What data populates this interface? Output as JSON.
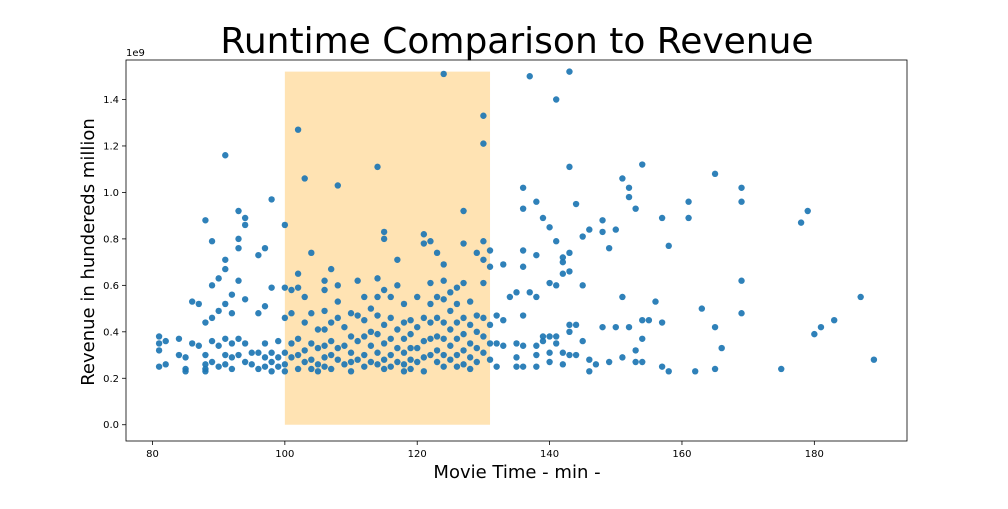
{
  "chart_data": {
    "type": "scatter",
    "title": "Runtime Comparison to Revenue",
    "xlabel": "Movie Time - min -",
    "ylabel": "Revenue in hundereds million",
    "y_offset_label": "1e9",
    "xlim": [
      76,
      194
    ],
    "ylim": [
      -0.07,
      1.57
    ],
    "x_ticks": [
      80,
      100,
      120,
      140,
      160,
      180
    ],
    "y_ticks": [
      0.0,
      0.2,
      0.4,
      0.6,
      0.8,
      1.0,
      1.2,
      1.4
    ],
    "y_tick_labels": [
      "0.0",
      "0.2",
      "0.4",
      "0.6",
      "0.8",
      "1.0",
      "1.2",
      "1.4"
    ],
    "grid": false,
    "highlight_band": {
      "x_start": 100,
      "x_end": 131,
      "y_start": 0.0,
      "y_end": 1.52,
      "color": "#ffe3b3"
    },
    "point_color": "#1f77b4",
    "points": [
      [
        81,
        0.38
      ],
      [
        81,
        0.35
      ],
      [
        81,
        0.32
      ],
      [
        81,
        0.25
      ],
      [
        82,
        0.36
      ],
      [
        82,
        0.26
      ],
      [
        84,
        0.37
      ],
      [
        84,
        0.3
      ],
      [
        85,
        0.29
      ],
      [
        85,
        0.24
      ],
      [
        85,
        0.23
      ],
      [
        86,
        0.53
      ],
      [
        86,
        0.35
      ],
      [
        87,
        0.52
      ],
      [
        87,
        0.34
      ],
      [
        88,
        0.88
      ],
      [
        88,
        0.44
      ],
      [
        88,
        0.3
      ],
      [
        88,
        0.26
      ],
      [
        88,
        0.24
      ],
      [
        88,
        0.23
      ],
      [
        89,
        0.79
      ],
      [
        89,
        0.6
      ],
      [
        89,
        0.46
      ],
      [
        89,
        0.36
      ],
      [
        89,
        0.27
      ],
      [
        90,
        0.63
      ],
      [
        90,
        0.49
      ],
      [
        90,
        0.34
      ],
      [
        90,
        0.25
      ],
      [
        91,
        1.16
      ],
      [
        91,
        0.71
      ],
      [
        91,
        0.67
      ],
      [
        91,
        0.52
      ],
      [
        91,
        0.37
      ],
      [
        91,
        0.3
      ],
      [
        91,
        0.26
      ],
      [
        92,
        0.56
      ],
      [
        92,
        0.48
      ],
      [
        92,
        0.35
      ],
      [
        92,
        0.29
      ],
      [
        92,
        0.24
      ],
      [
        93,
        0.92
      ],
      [
        93,
        0.8
      ],
      [
        93,
        0.76
      ],
      [
        93,
        0.62
      ],
      [
        93,
        0.37
      ],
      [
        93,
        0.3
      ],
      [
        94,
        0.89
      ],
      [
        94,
        0.86
      ],
      [
        94,
        0.54
      ],
      [
        94,
        0.35
      ],
      [
        94,
        0.27
      ],
      [
        95,
        0.31
      ],
      [
        95,
        0.26
      ],
      [
        96,
        0.73
      ],
      [
        96,
        0.48
      ],
      [
        96,
        0.31
      ],
      [
        96,
        0.24
      ],
      [
        97,
        0.76
      ],
      [
        97,
        0.51
      ],
      [
        97,
        0.35
      ],
      [
        97,
        0.29
      ],
      [
        97,
        0.25
      ],
      [
        98,
        0.97
      ],
      [
        98,
        0.59
      ],
      [
        98,
        0.31
      ],
      [
        98,
        0.27
      ],
      [
        98,
        0.23
      ],
      [
        99,
        0.36
      ],
      [
        99,
        0.29
      ],
      [
        99,
        0.25
      ],
      [
        100,
        0.86
      ],
      [
        100,
        0.59
      ],
      [
        100,
        0.46
      ],
      [
        100,
        0.31
      ],
      [
        100,
        0.26
      ],
      [
        100,
        0.23
      ],
      [
        101,
        0.58
      ],
      [
        101,
        0.48
      ],
      [
        101,
        0.35
      ],
      [
        101,
        0.29
      ],
      [
        102,
        1.27
      ],
      [
        102,
        0.65
      ],
      [
        102,
        0.59
      ],
      [
        102,
        0.37
      ],
      [
        102,
        0.3
      ],
      [
        102,
        0.24
      ],
      [
        103,
        1.06
      ],
      [
        103,
        0.55
      ],
      [
        103,
        0.44
      ],
      [
        103,
        0.32
      ],
      [
        103,
        0.27
      ],
      [
        104,
        0.74
      ],
      [
        104,
        0.48
      ],
      [
        104,
        0.35
      ],
      [
        104,
        0.28
      ],
      [
        104,
        0.24
      ],
      [
        105,
        0.41
      ],
      [
        105,
        0.33
      ],
      [
        105,
        0.26
      ],
      [
        105,
        0.23
      ],
      [
        106,
        0.62
      ],
      [
        106,
        0.58
      ],
      [
        106,
        0.49
      ],
      [
        106,
        0.41
      ],
      [
        106,
        0.34
      ],
      [
        106,
        0.29
      ],
      [
        106,
        0.25
      ],
      [
        107,
        0.67
      ],
      [
        107,
        0.44
      ],
      [
        107,
        0.36
      ],
      [
        107,
        0.3
      ],
      [
        107,
        0.24
      ],
      [
        108,
        1.03
      ],
      [
        108,
        0.6
      ],
      [
        108,
        0.53
      ],
      [
        108,
        0.46
      ],
      [
        108,
        0.33
      ],
      [
        108,
        0.28
      ],
      [
        109,
        0.42
      ],
      [
        109,
        0.34
      ],
      [
        109,
        0.26
      ],
      [
        110,
        0.48
      ],
      [
        110,
        0.38
      ],
      [
        110,
        0.31
      ],
      [
        110,
        0.27
      ],
      [
        110,
        0.23
      ],
      [
        111,
        0.62
      ],
      [
        111,
        0.47
      ],
      [
        111,
        0.36
      ],
      [
        111,
        0.28
      ],
      [
        112,
        0.55
      ],
      [
        112,
        0.45
      ],
      [
        112,
        0.38
      ],
      [
        112,
        0.3
      ],
      [
        112,
        0.25
      ],
      [
        113,
        0.5
      ],
      [
        113,
        0.4
      ],
      [
        113,
        0.34
      ],
      [
        113,
        0.27
      ],
      [
        114,
        1.11
      ],
      [
        114,
        0.63
      ],
      [
        114,
        0.55
      ],
      [
        114,
        0.47
      ],
      [
        114,
        0.39
      ],
      [
        114,
        0.31
      ],
      [
        114,
        0.26
      ],
      [
        115,
        0.83
      ],
      [
        115,
        0.8
      ],
      [
        115,
        0.58
      ],
      [
        115,
        0.43
      ],
      [
        115,
        0.35
      ],
      [
        115,
        0.28
      ],
      [
        115,
        0.24
      ],
      [
        116,
        0.55
      ],
      [
        116,
        0.46
      ],
      [
        116,
        0.37
      ],
      [
        116,
        0.3
      ],
      [
        116,
        0.25
      ],
      [
        117,
        0.71
      ],
      [
        117,
        0.6
      ],
      [
        117,
        0.41
      ],
      [
        117,
        0.33
      ],
      [
        117,
        0.27
      ],
      [
        118,
        0.52
      ],
      [
        118,
        0.44
      ],
      [
        118,
        0.37
      ],
      [
        118,
        0.31
      ],
      [
        118,
        0.26
      ],
      [
        118,
        0.23
      ],
      [
        119,
        0.45
      ],
      [
        119,
        0.39
      ],
      [
        119,
        0.33
      ],
      [
        119,
        0.28
      ],
      [
        119,
        0.24
      ],
      [
        120,
        0.55
      ],
      [
        120,
        0.42
      ],
      [
        120,
        0.33
      ],
      [
        120,
        0.27
      ],
      [
        121,
        0.82
      ],
      [
        121,
        0.78
      ],
      [
        121,
        0.46
      ],
      [
        121,
        0.36
      ],
      [
        121,
        0.29
      ],
      [
        121,
        0.23
      ],
      [
        122,
        0.79
      ],
      [
        122,
        0.61
      ],
      [
        122,
        0.52
      ],
      [
        122,
        0.44
      ],
      [
        122,
        0.37
      ],
      [
        122,
        0.3
      ],
      [
        123,
        0.74
      ],
      [
        123,
        0.55
      ],
      [
        123,
        0.46
      ],
      [
        123,
        0.38
      ],
      [
        123,
        0.32
      ],
      [
        123,
        0.27
      ],
      [
        124,
        1.51
      ],
      [
        124,
        0.69
      ],
      [
        124,
        0.62
      ],
      [
        124,
        0.54
      ],
      [
        124,
        0.44
      ],
      [
        124,
        0.37
      ],
      [
        124,
        0.3
      ],
      [
        124,
        0.25
      ],
      [
        125,
        0.57
      ],
      [
        125,
        0.49
      ],
      [
        125,
        0.41
      ],
      [
        125,
        0.34
      ],
      [
        125,
        0.28
      ],
      [
        126,
        0.59
      ],
      [
        126,
        0.52
      ],
      [
        126,
        0.44
      ],
      [
        126,
        0.37
      ],
      [
        126,
        0.3
      ],
      [
        126,
        0.25
      ],
      [
        127,
        0.92
      ],
      [
        127,
        0.78
      ],
      [
        127,
        0.61
      ],
      [
        127,
        0.46
      ],
      [
        127,
        0.39
      ],
      [
        127,
        0.32
      ],
      [
        127,
        0.26
      ],
      [
        128,
        0.53
      ],
      [
        128,
        0.43
      ],
      [
        128,
        0.35
      ],
      [
        128,
        0.29
      ],
      [
        128,
        0.24
      ],
      [
        129,
        0.74
      ],
      [
        129,
        0.47
      ],
      [
        129,
        0.4
      ],
      [
        129,
        0.33
      ],
      [
        129,
        0.27
      ],
      [
        130,
        1.33
      ],
      [
        130,
        1.21
      ],
      [
        130,
        0.79
      ],
      [
        130,
        0.71
      ],
      [
        130,
        0.61
      ],
      [
        130,
        0.46
      ],
      [
        130,
        0.38
      ],
      [
        130,
        0.31
      ],
      [
        131,
        0.75
      ],
      [
        131,
        0.68
      ],
      [
        131,
        0.43
      ],
      [
        131,
        0.35
      ],
      [
        131,
        0.28
      ],
      [
        132,
        0.47
      ],
      [
        132,
        0.35
      ],
      [
        132,
        0.25
      ],
      [
        133,
        0.69
      ],
      [
        133,
        0.45
      ],
      [
        133,
        0.34
      ],
      [
        134,
        0.55
      ],
      [
        135,
        0.57
      ],
      [
        135,
        0.35
      ],
      [
        135,
        0.29
      ],
      [
        135,
        0.25
      ],
      [
        136,
        1.02
      ],
      [
        136,
        0.93
      ],
      [
        136,
        0.75
      ],
      [
        136,
        0.68
      ],
      [
        136,
        0.47
      ],
      [
        136,
        0.34
      ],
      [
        136,
        0.25
      ],
      [
        137,
        1.5
      ],
      [
        137,
        0.57
      ],
      [
        138,
        0.96
      ],
      [
        138,
        0.73
      ],
      [
        138,
        0.55
      ],
      [
        138,
        0.34
      ],
      [
        138,
        0.3
      ],
      [
        138,
        0.25
      ],
      [
        139,
        0.89
      ],
      [
        139,
        0.38
      ],
      [
        139,
        0.36
      ],
      [
        140,
        0.85
      ],
      [
        140,
        0.61
      ],
      [
        140,
        0.38
      ],
      [
        140,
        0.31
      ],
      [
        140,
        0.27
      ],
      [
        141,
        1.4
      ],
      [
        141,
        0.79
      ],
      [
        141,
        0.6
      ],
      [
        141,
        0.38
      ],
      [
        141,
        0.35
      ],
      [
        142,
        0.72
      ],
      [
        142,
        0.7
      ],
      [
        142,
        0.65
      ],
      [
        142,
        0.31
      ],
      [
        142,
        0.26
      ],
      [
        143,
        1.52
      ],
      [
        143,
        1.11
      ],
      [
        143,
        0.74
      ],
      [
        143,
        0.66
      ],
      [
        143,
        0.43
      ],
      [
        143,
        0.4
      ],
      [
        143,
        0.3
      ],
      [
        144,
        0.95
      ],
      [
        144,
        0.43
      ],
      [
        144,
        0.3
      ],
      [
        145,
        0.81
      ],
      [
        145,
        0.6
      ],
      [
        145,
        0.36
      ],
      [
        146,
        0.84
      ],
      [
        146,
        0.28
      ],
      [
        146,
        0.23
      ],
      [
        147,
        0.26
      ],
      [
        148,
        0.88
      ],
      [
        148,
        0.83
      ],
      [
        148,
        0.42
      ],
      [
        149,
        0.76
      ],
      [
        149,
        0.27
      ],
      [
        150,
        0.84
      ],
      [
        150,
        0.42
      ],
      [
        151,
        1.06
      ],
      [
        151,
        0.55
      ],
      [
        151,
        0.29
      ],
      [
        152,
        1.02
      ],
      [
        152,
        0.98
      ],
      [
        152,
        0.42
      ],
      [
        153,
        0.93
      ],
      [
        153,
        0.32
      ],
      [
        153,
        0.27
      ],
      [
        154,
        1.12
      ],
      [
        154,
        0.45
      ],
      [
        154,
        0.37
      ],
      [
        154,
        0.27
      ],
      [
        155,
        0.45
      ],
      [
        156,
        0.53
      ],
      [
        157,
        0.89
      ],
      [
        157,
        0.44
      ],
      [
        157,
        0.25
      ],
      [
        158,
        0.77
      ],
      [
        158,
        0.23
      ],
      [
        161,
        0.96
      ],
      [
        161,
        0.89
      ],
      [
        162,
        0.23
      ],
      [
        163,
        0.5
      ],
      [
        165,
        1.08
      ],
      [
        165,
        0.42
      ],
      [
        165,
        0.24
      ],
      [
        166,
        0.33
      ],
      [
        169,
        1.02
      ],
      [
        169,
        0.96
      ],
      [
        169,
        0.62
      ],
      [
        169,
        0.48
      ],
      [
        175,
        0.24
      ],
      [
        178,
        0.87
      ],
      [
        179,
        0.92
      ],
      [
        180,
        0.39
      ],
      [
        181,
        0.42
      ],
      [
        183,
        0.45
      ],
      [
        187,
        0.55
      ],
      [
        189,
        0.28
      ]
    ]
  }
}
